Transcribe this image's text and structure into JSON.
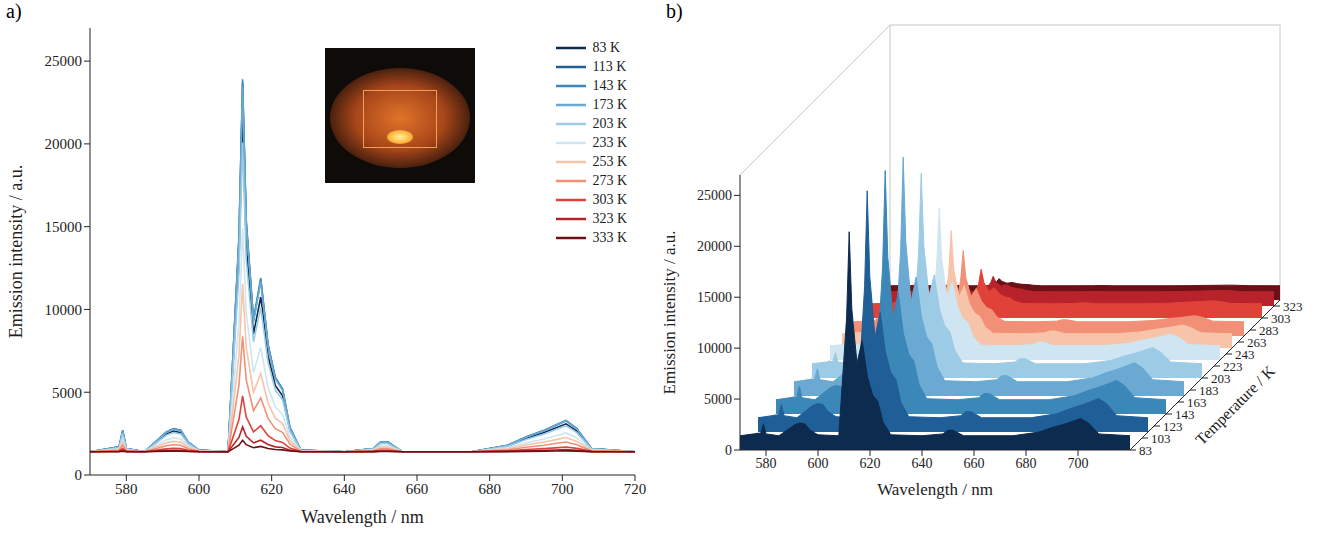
{
  "chart_data": [
    {
      "type": "line",
      "title": "a)",
      "x_label": "Wavelength / nm",
      "y_label": "Emission intensity / a.u.",
      "x": [
        570,
        578,
        579,
        580,
        585,
        591,
        593,
        595,
        597,
        600,
        608,
        611,
        612,
        613,
        615,
        617,
        619,
        621,
        623,
        625,
        628,
        640,
        648,
        650,
        652,
        656,
        675,
        685,
        690,
        695,
        698,
        701,
        704,
        708,
        720
      ],
      "xlim": [
        570,
        720
      ],
      "xticks": [
        580,
        600,
        620,
        640,
        660,
        680,
        700,
        720
      ],
      "ylim": [
        0,
        27000
      ],
      "yticks": [
        0,
        5000,
        10000,
        15000,
        20000,
        25000
      ],
      "legend": "upper right",
      "series": [
        {
          "name": "83 K",
          "color": "#0d2a4f",
          "values": [
            1400,
            1670,
            2560,
            1580,
            1400,
            2470,
            2650,
            2560,
            1930,
            1490,
            1400,
            12970,
            21430,
            13860,
            8520,
            10750,
            7190,
            5410,
            4780,
            2740,
            1490,
            1400,
            1580,
            1930,
            1930,
            1400,
            1400,
            1760,
            2200,
            2560,
            2820,
            3090,
            2650,
            1580,
            1400
          ]
        },
        {
          "name": "113 K",
          "color": "#1f5e96",
          "values": [
            1400,
            1700,
            2690,
            1600,
            1400,
            2590,
            2790,
            2690,
            1990,
            1500,
            1400,
            14270,
            23680,
            15260,
            9320,
            11800,
            7840,
            5860,
            5160,
            2890,
            1500,
            1400,
            1600,
            1990,
            1990,
            1400,
            1400,
            1800,
            2290,
            2690,
            2980,
            3280,
            2790,
            1600,
            1400
          ]
        },
        {
          "name": "143 K",
          "color": "#3a87b8",
          "values": [
            1400,
            1700,
            2700,
            1600,
            1400,
            2600,
            2800,
            2700,
            2000,
            1500,
            1400,
            14400,
            23900,
            15400,
            9400,
            11900,
            7900,
            5900,
            5200,
            2900,
            1500,
            1400,
            1600,
            2000,
            2000,
            1400,
            1400,
            1800,
            2300,
            2700,
            3000,
            3300,
            2800,
            1600,
            1400
          ]
        },
        {
          "name": "173 K",
          "color": "#6aa9d1",
          "values": [
            1400,
            1690,
            2670,
            1600,
            1400,
            2580,
            2770,
            2670,
            1990,
            1500,
            1400,
            14140,
            23450,
            15120,
            9240,
            11690,
            7770,
            5810,
            5120,
            2870,
            1500,
            1400,
            1600,
            1990,
            1990,
            1400,
            1400,
            1790,
            2280,
            2670,
            2970,
            3260,
            2770,
            1600,
            1400
          ]
        },
        {
          "name": "203 K",
          "color": "#9ccbe6",
          "values": [
            1400,
            1650,
            2480,
            1570,
            1400,
            2400,
            2560,
            2480,
            1900,
            1480,
            1400,
            12190,
            20080,
            13020,
            8040,
            10120,
            6800,
            5140,
            4550,
            2650,
            1480,
            1400,
            1570,
            1900,
            1900,
            1400,
            1400,
            1730,
            2150,
            2480,
            2730,
            2980,
            2560,
            1570,
            1400
          ]
        },
        {
          "name": "233 K",
          "color": "#cfe5f1",
          "values": [
            1400,
            1580,
            2180,
            1520,
            1400,
            2120,
            2240,
            2180,
            1760,
            1460,
            1400,
            9200,
            14900,
            9800,
            6200,
            7700,
            5300,
            4100,
            3680,
            2300,
            1460,
            1400,
            1520,
            1760,
            1760,
            1400,
            1400,
            1640,
            1940,
            2180,
            2360,
            2540,
            2240,
            1520,
            1400
          ]
        },
        {
          "name": "253 K",
          "color": "#f7c3a9",
          "values": [
            1400,
            1540,
            1990,
            1490,
            1400,
            1940,
            2030,
            1990,
            1670,
            1450,
            1400,
            7250,
            11530,
            7700,
            5000,
            6130,
            4330,
            3430,
            3110,
            2080,
            1450,
            1400,
            1490,
            1670,
            1670,
            1400,
            1400,
            1580,
            1810,
            1990,
            2120,
            2260,
            2030,
            1490,
            1400
          ]
        },
        {
          "name": "273 K",
          "color": "#f19076",
          "values": [
            1400,
            1490,
            1800,
            1460,
            1400,
            1770,
            1830,
            1800,
            1590,
            1430,
            1400,
            5430,
            8380,
            5740,
            3880,
            4660,
            3420,
            2800,
            2580,
            1870,
            1430,
            1400,
            1460,
            1590,
            1590,
            1400,
            1400,
            1520,
            1680,
            1800,
            1900,
            1990,
            1830,
            1460,
            1400
          ]
        },
        {
          "name": "303 K",
          "color": "#e0423a",
          "values": [
            1400,
            1450,
            1600,
            1430,
            1400,
            1580,
            1610,
            1600,
            1490,
            1420,
            1400,
            3350,
            4780,
            3500,
            2600,
            2980,
            2380,
            2080,
            1970,
            1630,
            1420,
            1400,
            1430,
            1490,
            1490,
            1400,
            1400,
            1460,
            1540,
            1600,
            1640,
            1690,
            1610,
            1430,
            1400
          ]
        },
        {
          "name": "323 K",
          "color": "#b8222a",
          "values": [
            1400,
            1420,
            1490,
            1410,
            1400,
            1480,
            1490,
            1490,
            1440,
            1410,
            1400,
            2270,
            2910,
            2340,
            1940,
            2100,
            1840,
            1700,
            1660,
            1500,
            1410,
            1400,
            1410,
            1440,
            1440,
            1400,
            1400,
            1430,
            1460,
            1490,
            1510,
            1530,
            1490,
            1410,
            1400
          ]
        },
        {
          "name": "333 K",
          "color": "#6b1016",
          "values": [
            1400,
            1410,
            1440,
            1410,
            1400,
            1440,
            1440,
            1440,
            1420,
            1400,
            1400,
            1800,
            2100,
            1830,
            1650,
            1730,
            1600,
            1540,
            1520,
            1450,
            1400,
            1400,
            1410,
            1420,
            1420,
            1400,
            1400,
            1410,
            1430,
            1440,
            1450,
            1460,
            1440,
            1410,
            1400
          ]
        }
      ]
    },
    {
      "type": "waterfall",
      "title": "b)",
      "x_label": "Wavelength / nm",
      "y_label": "Emission intensity / a.u.",
      "z_label": "Temperature / K",
      "x": [
        570,
        578,
        579,
        580,
        585,
        591,
        593,
        595,
        597,
        600,
        608,
        611,
        612,
        613,
        615,
        617,
        619,
        621,
        623,
        625,
        628,
        640,
        648,
        650,
        652,
        656,
        675,
        685,
        690,
        695,
        698,
        701,
        704,
        708,
        720
      ],
      "xlim": [
        570,
        720
      ],
      "xticks": [
        580,
        600,
        620,
        640,
        660,
        680,
        700
      ],
      "ylim": [
        0,
        27000
      ],
      "yticks": [
        0,
        5000,
        10000,
        15000,
        20000,
        25000
      ],
      "zlim": [
        83,
        333
      ],
      "zticks": [
        83,
        103,
        123,
        143,
        163,
        183,
        203,
        223,
        243,
        263,
        283,
        303,
        323
      ],
      "series": [
        {
          "z": 83,
          "color": "#0d2a4f",
          "values": [
            1400,
            1670,
            2560,
            1580,
            1400,
            2470,
            2650,
            2560,
            1930,
            1490,
            1400,
            12970,
            21430,
            13860,
            8520,
            10750,
            7190,
            5410,
            4780,
            2740,
            1490,
            1400,
            1580,
            1930,
            1930,
            1400,
            1400,
            1760,
            2200,
            2560,
            2820,
            3090,
            2650,
            1580,
            1400
          ]
        },
        {
          "z": 113,
          "color": "#1f5e96",
          "values": [
            1400,
            1700,
            2690,
            1600,
            1400,
            2590,
            2790,
            2690,
            1990,
            1500,
            1400,
            14270,
            23680,
            15260,
            9320,
            11800,
            7840,
            5860,
            5160,
            2890,
            1500,
            1400,
            1600,
            1990,
            1990,
            1400,
            1400,
            1800,
            2290,
            2690,
            2980,
            3280,
            2790,
            1600,
            1400
          ]
        },
        {
          "z": 143,
          "color": "#3a87b8",
          "values": [
            1400,
            1700,
            2700,
            1600,
            1400,
            2600,
            2800,
            2700,
            2000,
            1500,
            1400,
            14400,
            23900,
            15400,
            9400,
            11900,
            7900,
            5900,
            5200,
            2900,
            1500,
            1400,
            1600,
            2000,
            2000,
            1400,
            1400,
            1800,
            2300,
            2700,
            3000,
            3300,
            2800,
            1600,
            1400
          ]
        },
        {
          "z": 173,
          "color": "#6aa9d1",
          "values": [
            1400,
            1690,
            2670,
            1600,
            1400,
            2580,
            2770,
            2670,
            1990,
            1500,
            1400,
            14140,
            23450,
            15120,
            9240,
            11690,
            7770,
            5810,
            5120,
            2870,
            1500,
            1400,
            1600,
            1990,
            1990,
            1400,
            1400,
            1790,
            2280,
            2670,
            2970,
            3260,
            2770,
            1600,
            1400
          ]
        },
        {
          "z": 203,
          "color": "#9ccbe6",
          "values": [
            1400,
            1650,
            2480,
            1570,
            1400,
            2400,
            2560,
            2480,
            1900,
            1480,
            1400,
            12190,
            20080,
            13020,
            8040,
            10120,
            6800,
            5140,
            4550,
            2650,
            1480,
            1400,
            1570,
            1900,
            1900,
            1400,
            1400,
            1730,
            2150,
            2480,
            2730,
            2980,
            2560,
            1570,
            1400
          ]
        },
        {
          "z": 233,
          "color": "#cfe5f1",
          "values": [
            1400,
            1580,
            2180,
            1520,
            1400,
            2120,
            2240,
            2180,
            1760,
            1460,
            1400,
            9200,
            14900,
            9800,
            6200,
            7700,
            5300,
            4100,
            3680,
            2300,
            1460,
            1400,
            1520,
            1760,
            1760,
            1400,
            1400,
            1640,
            1940,
            2180,
            2360,
            2540,
            2240,
            1520,
            1400
          ]
        },
        {
          "z": 253,
          "color": "#f7c3a9",
          "values": [
            1400,
            1540,
            1990,
            1490,
            1400,
            1940,
            2030,
            1990,
            1670,
            1450,
            1400,
            7250,
            11530,
            7700,
            5000,
            6130,
            4330,
            3430,
            3110,
            2080,
            1450,
            1400,
            1490,
            1670,
            1670,
            1400,
            1400,
            1580,
            1810,
            1990,
            2120,
            2260,
            2030,
            1490,
            1400
          ]
        },
        {
          "z": 273,
          "color": "#f19076",
          "values": [
            1400,
            1490,
            1800,
            1460,
            1400,
            1770,
            1830,
            1800,
            1590,
            1430,
            1400,
            5430,
            8380,
            5740,
            3880,
            4660,
            3420,
            2800,
            2580,
            1870,
            1430,
            1400,
            1460,
            1590,
            1590,
            1400,
            1400,
            1520,
            1680,
            1800,
            1900,
            1990,
            1830,
            1460,
            1400
          ]
        },
        {
          "z": 303,
          "color": "#e0423a",
          "values": [
            1400,
            1450,
            1600,
            1430,
            1400,
            1580,
            1610,
            1600,
            1490,
            1420,
            1400,
            3350,
            4780,
            3500,
            2600,
            2980,
            2380,
            2080,
            1970,
            1630,
            1420,
            1400,
            1430,
            1490,
            1490,
            1400,
            1400,
            1460,
            1540,
            1600,
            1640,
            1690,
            1610,
            1430,
            1400
          ]
        },
        {
          "z": 323,
          "color": "#b8222a",
          "values": [
            1400,
            1420,
            1490,
            1410,
            1400,
            1480,
            1490,
            1490,
            1440,
            1410,
            1400,
            2270,
            2910,
            2340,
            1940,
            2100,
            1840,
            1700,
            1660,
            1500,
            1410,
            1400,
            1410,
            1440,
            1440,
            1400,
            1400,
            1430,
            1460,
            1490,
            1510,
            1530,
            1490,
            1410,
            1400
          ]
        },
        {
          "z": 333,
          "color": "#6b1016",
          "values": [
            1400,
            1410,
            1440,
            1410,
            1400,
            1440,
            1440,
            1440,
            1420,
            1400,
            1400,
            1800,
            2100,
            1830,
            1650,
            1730,
            1600,
            1540,
            1520,
            1450,
            1400,
            1400,
            1410,
            1420,
            1420,
            1400,
            1400,
            1410,
            1430,
            1440,
            1450,
            1460,
            1440,
            1410,
            1400
          ]
        }
      ]
    }
  ]
}
